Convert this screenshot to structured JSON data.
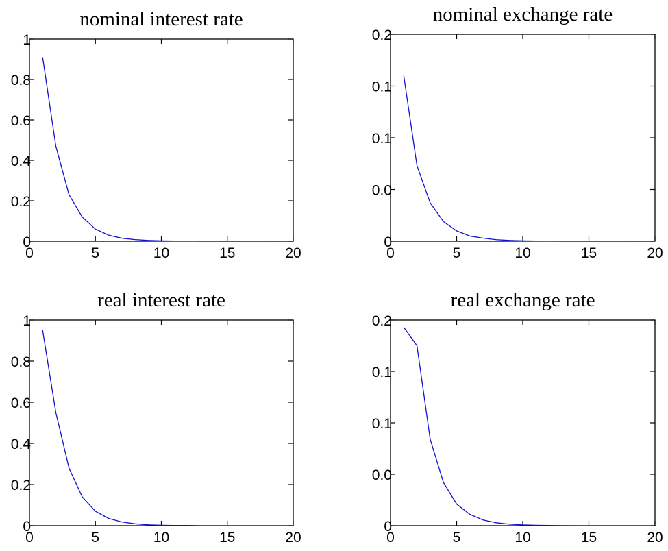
{
  "chart_data": [
    {
      "type": "line",
      "title": "nominal interest rate",
      "xlim": [
        0,
        20
      ],
      "ylim": [
        0,
        1
      ],
      "xticks": [
        0,
        5,
        10,
        15,
        20
      ],
      "xtick_labels": [
        "0",
        "5",
        "10",
        "15",
        "20"
      ],
      "yticks": [
        0,
        0.2,
        0.4,
        0.6,
        0.8,
        1
      ],
      "ytick_labels": [
        "0",
        "0.2",
        "0.4",
        "0.6",
        "0.8",
        "1"
      ],
      "series": [
        {
          "x": [
            1,
            2,
            3,
            4,
            5,
            6,
            7,
            8,
            9,
            10,
            11,
            12,
            13,
            14,
            15,
            16,
            17,
            18
          ],
          "y": [
            0.91,
            0.47,
            0.23,
            0.12,
            0.06,
            0.03,
            0.015,
            0.008,
            0.004,
            0.002,
            0.001,
            0.001,
            0,
            0,
            0,
            0,
            0,
            0
          ]
        }
      ]
    },
    {
      "type": "line",
      "title": "nominal exchange rate",
      "xlim": [
        0,
        20
      ],
      "ylim": [
        0,
        0.2
      ],
      "xticks": [
        0,
        5,
        10,
        15,
        20
      ],
      "xtick_labels": [
        "0",
        "5",
        "10",
        "15",
        "20"
      ],
      "yticks": [
        0,
        0.05,
        0.1,
        0.15,
        0.2
      ],
      "ytick_labels": [
        "0",
        "0.0",
        "0.1",
        "0.1",
        "0.2"
      ],
      "series": [
        {
          "x": [
            1,
            2,
            3,
            4,
            5,
            6,
            7,
            8,
            9,
            10,
            11,
            12,
            13,
            14,
            15,
            16,
            17,
            18
          ],
          "y": [
            0.16,
            0.073,
            0.037,
            0.019,
            0.01,
            0.005,
            0.003,
            0.0015,
            0.0008,
            0.0004,
            0.0002,
            0.0001,
            0,
            0,
            0,
            0,
            0,
            0
          ]
        }
      ]
    },
    {
      "type": "line",
      "title": "real interest rate",
      "xlim": [
        0,
        20
      ],
      "ylim": [
        0,
        1
      ],
      "xticks": [
        0,
        5,
        10,
        15,
        20
      ],
      "xtick_labels": [
        "0",
        "5",
        "10",
        "15",
        "20"
      ],
      "yticks": [
        0,
        0.2,
        0.4,
        0.6,
        0.8,
        1
      ],
      "ytick_labels": [
        "0",
        "0.2",
        "0.4",
        "0.6",
        "0.8",
        "1"
      ],
      "series": [
        {
          "x": [
            1,
            2,
            3,
            4,
            5,
            6,
            7,
            8,
            9,
            10,
            11,
            12,
            13,
            14,
            15,
            16,
            17,
            18
          ],
          "y": [
            0.95,
            0.55,
            0.28,
            0.14,
            0.07,
            0.035,
            0.018,
            0.009,
            0.004,
            0.002,
            0.001,
            0.001,
            0,
            0,
            0,
            0,
            0,
            0
          ]
        }
      ]
    },
    {
      "type": "line",
      "title": "real exchange rate",
      "xlim": [
        0,
        20
      ],
      "ylim": [
        0,
        0.2
      ],
      "xticks": [
        0,
        5,
        10,
        15,
        20
      ],
      "xtick_labels": [
        "0",
        "5",
        "10",
        "15",
        "20"
      ],
      "yticks": [
        0,
        0.05,
        0.1,
        0.15,
        0.2
      ],
      "ytick_labels": [
        "0",
        "0.0",
        "0.1",
        "0.1",
        "0.2"
      ],
      "series": [
        {
          "x": [
            1,
            2,
            3,
            4,
            5,
            6,
            7,
            8,
            9,
            10,
            11,
            12,
            13,
            14,
            15,
            16,
            17,
            18
          ],
          "y": [
            0.193,
            0.175,
            0.084,
            0.042,
            0.021,
            0.011,
            0.0055,
            0.0028,
            0.0014,
            0.0007,
            0.0004,
            0.0002,
            0.0001,
            0,
            0,
            0,
            0,
            0
          ]
        }
      ]
    }
  ]
}
